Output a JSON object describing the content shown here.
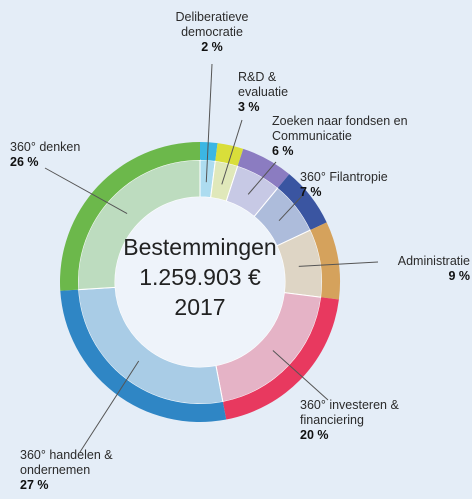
{
  "chart_data": {
    "type": "pie",
    "donut": true,
    "title": "Bestemmingen",
    "total": "1.259.903 €",
    "year": "2017",
    "categories": [
      "Deliberatieve democratie",
      "R&D & evaluatie",
      "Zoeken naar fondsen en Communicatie",
      "360° Filantropie",
      "Administratie",
      "360° investeren & financiering",
      "360° handelen & ondernemen",
      "360° denken"
    ],
    "values": [
      2,
      3,
      6,
      7,
      9,
      20,
      27,
      26
    ],
    "value_labels": [
      "2 %",
      "3 %",
      "6 %",
      "7 %",
      "9 %",
      "20 %",
      "27 %",
      "26 %"
    ],
    "colors": [
      "#3cb6e3",
      "#d9de3a",
      "#8b7cc1",
      "#3a55a1",
      "#d5a25c",
      "#e8395f",
      "#2f86c5",
      "#6cb84b"
    ]
  }
}
